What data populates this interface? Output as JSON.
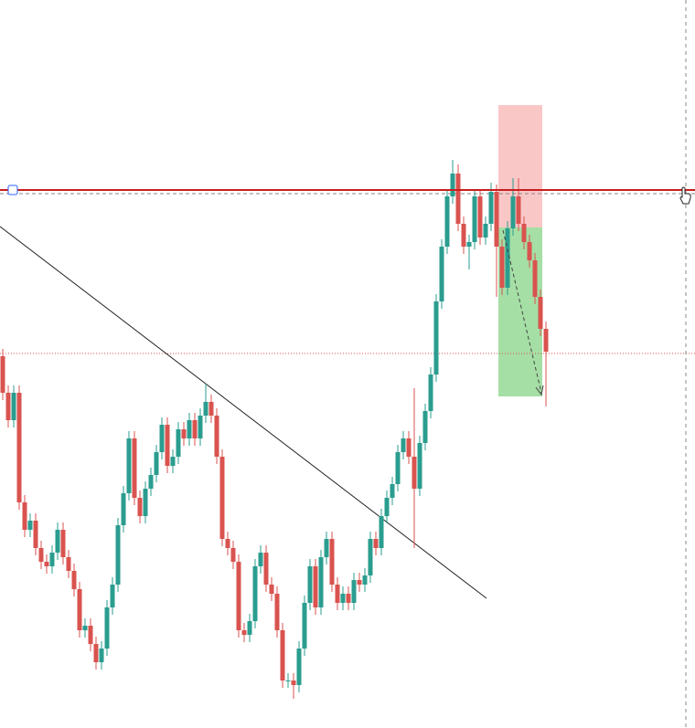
{
  "chart_data": {
    "type": "candlestick",
    "up_color": "#2a9d8f",
    "down_color": "#d9534f",
    "ylim": [
      0,
      800
    ],
    "open": [
      410,
      370,
      340,
      370,
      250,
      220,
      230,
      200,
      185,
      180,
      195,
      220,
      190,
      175,
      155,
      110,
      115,
      95,
      75,
      90,
      135,
      160,
      225,
      260,
      320,
      255,
      235,
      265,
      280,
      305,
      335,
      290,
      300,
      330,
      320,
      340,
      320,
      345,
      360,
      345,
      300,
      210,
      200,
      185,
      110,
      105,
      120,
      180,
      195,
      160,
      150,
      110,
      55,
      55,
      50,
      90,
      140,
      180,
      135,
      190,
      210,
      160,
      140,
      150,
      140,
      165,
      160,
      170,
      210,
      200,
      235,
      255,
      270,
      305,
      320,
      300,
      265,
      315,
      350,
      390,
      470,
      530,
      585,
      610,
      555,
      530,
      535,
      585,
      540,
      555,
      590,
      530,
      485,
      550,
      585,
      555,
      535,
      515,
      475,
      440
    ],
    "high": [
      418,
      378,
      378,
      378,
      258,
      238,
      238,
      208,
      193,
      203,
      228,
      228,
      198,
      183,
      163,
      123,
      123,
      103,
      98,
      143,
      168,
      233,
      268,
      328,
      328,
      263,
      273,
      288,
      313,
      343,
      343,
      308,
      338,
      338,
      348,
      348,
      353,
      380,
      368,
      353,
      308,
      218,
      208,
      193,
      118,
      128,
      188,
      203,
      203,
      168,
      158,
      118,
      63,
      63,
      98,
      148,
      188,
      188,
      198,
      218,
      218,
      168,
      158,
      158,
      173,
      173,
      178,
      218,
      218,
      243,
      263,
      278,
      313,
      328,
      328,
      375,
      323,
      358,
      398,
      478,
      538,
      593,
      625,
      620,
      563,
      543,
      593,
      593,
      563,
      600,
      598,
      538,
      558,
      605,
      605,
      563,
      543,
      523,
      483,
      448
    ],
    "low": [
      362,
      332,
      332,
      242,
      212,
      212,
      192,
      177,
      172,
      172,
      187,
      182,
      167,
      147,
      102,
      102,
      87,
      67,
      67,
      82,
      127,
      152,
      217,
      252,
      247,
      227,
      227,
      257,
      272,
      297,
      282,
      282,
      292,
      312,
      312,
      312,
      312,
      337,
      337,
      292,
      202,
      192,
      177,
      102,
      97,
      97,
      112,
      172,
      152,
      142,
      102,
      47,
      47,
      35,
      42,
      82,
      132,
      127,
      127,
      182,
      152,
      132,
      132,
      132,
      132,
      152,
      152,
      162,
      192,
      192,
      227,
      247,
      262,
      297,
      292,
      200,
      257,
      307,
      342,
      382,
      462,
      522,
      577,
      547,
      522,
      505,
      527,
      532,
      532,
      547,
      475,
      477,
      477,
      542,
      547,
      527,
      507,
      467,
      432,
      355
    ],
    "close": [
      370,
      340,
      370,
      250,
      220,
      230,
      200,
      185,
      180,
      195,
      220,
      190,
      175,
      155,
      110,
      115,
      95,
      75,
      90,
      135,
      160,
      225,
      260,
      320,
      255,
      235,
      265,
      280,
      305,
      335,
      290,
      300,
      330,
      320,
      340,
      320,
      345,
      360,
      345,
      300,
      210,
      200,
      185,
      110,
      105,
      120,
      180,
      195,
      160,
      150,
      110,
      55,
      55,
      50,
      90,
      140,
      180,
      135,
      190,
      210,
      160,
      140,
      150,
      140,
      165,
      160,
      170,
      210,
      200,
      235,
      255,
      270,
      305,
      320,
      300,
      265,
      315,
      350,
      390,
      470,
      530,
      585,
      610,
      555,
      530,
      535,
      585,
      540,
      555,
      590,
      530,
      485,
      550,
      585,
      555,
      535,
      515,
      475,
      440,
      415
    ]
  }
}
